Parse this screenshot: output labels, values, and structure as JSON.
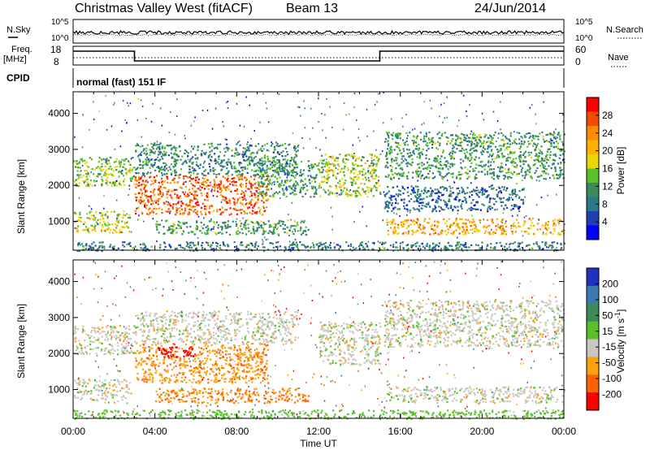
{
  "header": {
    "station": "Christmas Valley West (fitACF)",
    "beam": "Beam 13",
    "date": "24/Jun/2014"
  },
  "labels": {
    "nsky": "N.Sky",
    "nsearch": "N.Search",
    "freq_line1": "Freq.",
    "freq_line2": "[MHz]",
    "nave": "Nave",
    "cpid": "CPID",
    "cpid_value": "normal (fast) 151 IF",
    "ylabel": "Slant Range [km]",
    "xlabel": "Time UT"
  },
  "noise_panel": {
    "left_ticks": [
      "10^5",
      "10^0"
    ],
    "right_ticks": [
      "10^5",
      "10^0"
    ]
  },
  "freq_panel": {
    "left_ticks": [
      "18",
      "8"
    ],
    "right_ticks": [
      "60",
      "0"
    ],
    "freq_segments": [
      {
        "start": 0.0,
        "end": 3.0,
        "level": "high"
      },
      {
        "start": 3.0,
        "end": 15.0,
        "level": "low"
      },
      {
        "start": 15.0,
        "end": 24.0,
        "level": "high"
      }
    ]
  },
  "chart_data": [
    {
      "type": "heatmap",
      "name": "power",
      "xlim": [
        0,
        24
      ],
      "ylim": [
        200,
        4600
      ],
      "xticks": [
        "00:00",
        "04:00",
        "08:00",
        "12:00",
        "16:00",
        "20:00",
        "00:00"
      ],
      "yticks": [
        1000,
        2000,
        3000,
        4000
      ],
      "colorbar": {
        "label": "Power [dB]",
        "ticks": [
          "28",
          "24",
          "20",
          "16",
          "12",
          "8",
          "4"
        ],
        "colors": [
          "#ff0000",
          "#f24a00",
          "#ff8c00",
          "#ffb000",
          "#e8d800",
          "#58c028",
          "#3a8a5a",
          "#2a7a8a",
          "#2040b0",
          "#0000ff"
        ]
      },
      "regions": [
        {
          "t0": 0.0,
          "t1": 3.0,
          "r0": 2000,
          "r1": 2800,
          "level": 0.45
        },
        {
          "t0": 0.0,
          "t1": 2.8,
          "r0": 700,
          "r1": 1300,
          "level": 0.55
        },
        {
          "t0": 3.0,
          "t1": 9.5,
          "r0": 1200,
          "r1": 2300,
          "level": 0.85
        },
        {
          "t0": 4.0,
          "t1": 11.5,
          "r0": 650,
          "r1": 1050,
          "level": 0.35
        },
        {
          "t0": 3.0,
          "t1": 11.0,
          "r0": 2300,
          "r1": 3200,
          "level": 0.3
        },
        {
          "t0": 9.0,
          "t1": 12.0,
          "r0": 1700,
          "r1": 2700,
          "level": 0.35
        },
        {
          "t0": 12.0,
          "t1": 15.0,
          "r0": 1700,
          "r1": 2900,
          "level": 0.5
        },
        {
          "t0": 15.2,
          "t1": 24.0,
          "r0": 2200,
          "r1": 3500,
          "level": 0.35
        },
        {
          "t0": 15.2,
          "t1": 22.0,
          "r0": 1300,
          "r1": 2000,
          "level": 0.2
        },
        {
          "t0": 15.3,
          "t1": 24.0,
          "r0": 650,
          "r1": 1100,
          "level": 0.7
        },
        {
          "t0": 0.0,
          "t1": 24.0,
          "r0": 200,
          "r1": 450,
          "level": 0.25
        }
      ]
    },
    {
      "type": "heatmap",
      "name": "velocity",
      "xlim": [
        0,
        24
      ],
      "ylim": [
        200,
        4600
      ],
      "xticks": [
        "00:00",
        "04:00",
        "08:00",
        "12:00",
        "16:00",
        "20:00",
        "00:00"
      ],
      "yticks": [
        1000,
        2000,
        3000,
        4000
      ],
      "colorbar": {
        "label": "Velocity [m s^-1]",
        "ticks": [
          "200",
          "100",
          "50",
          "15",
          "-15",
          "-50",
          "-100",
          "-200"
        ],
        "colors": [
          "#2030c0",
          "#3a7ab0",
          "#3a8a5a",
          "#58c028",
          "#c8c8c0",
          "#ffa010",
          "#ff6000",
          "#ff0000"
        ]
      },
      "regions": [
        {
          "t0": 0.0,
          "t1": 3.0,
          "r0": 2000,
          "r1": 2800,
          "v": 0
        },
        {
          "t0": 0.0,
          "t1": 2.8,
          "r0": 700,
          "r1": 1300,
          "v": 0
        },
        {
          "t0": 3.0,
          "t1": 9.5,
          "r0": 1200,
          "r1": 2300,
          "v": -40
        },
        {
          "t0": 4.0,
          "t1": 6.0,
          "r0": 1900,
          "r1": 2200,
          "v": -200
        },
        {
          "t0": 4.0,
          "t1": 11.5,
          "r0": 650,
          "r1": 1050,
          "v": -50
        },
        {
          "t0": 3.0,
          "t1": 11.0,
          "r0": 2300,
          "r1": 3200,
          "v": 0
        },
        {
          "t0": 12.0,
          "t1": 15.0,
          "r0": 1700,
          "r1": 2900,
          "v": 0
        },
        {
          "t0": 15.2,
          "t1": 24.0,
          "r0": 2200,
          "r1": 3500,
          "v": 0
        },
        {
          "t0": 15.3,
          "t1": 24.0,
          "r0": 650,
          "r1": 1100,
          "v": 0
        },
        {
          "t0": 0.0,
          "t1": 24.0,
          "r0": 200,
          "r1": 450,
          "v": 30
        }
      ]
    }
  ]
}
